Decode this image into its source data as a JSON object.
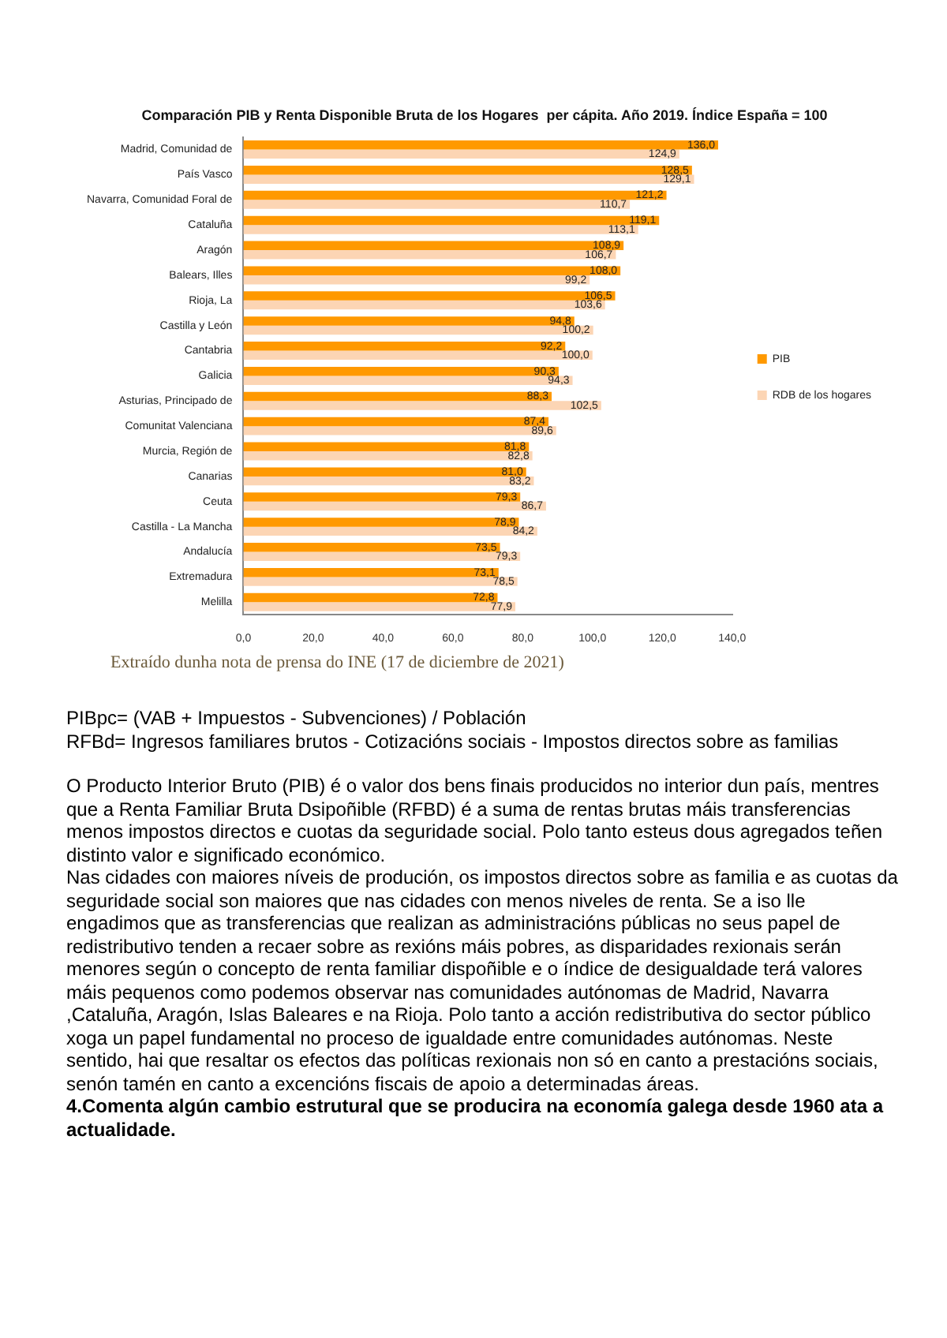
{
  "chart_data": {
    "type": "bar",
    "orientation": "horizontal",
    "title": "Comparación PIB y Renta Disponible Bruta de los Hogares  per cápita. Año 2019. Índice España = 100",
    "categories": [
      "Madrid, Comunidad de",
      "País Vasco",
      "Navarra, Comunidad Foral de",
      "Cataluña",
      "Aragón",
      "Balears, Illes",
      "Rioja, La",
      "Castilla y León",
      "Cantabria",
      "Galicia",
      "Asturias, Principado de",
      "Comunitat Valenciana",
      "Murcia, Región de",
      "Canarias",
      "Ceuta",
      "Castilla - La Mancha",
      "Andalucía",
      "Extremadura",
      "Melilla"
    ],
    "series": [
      {
        "name": "PIB",
        "color": "#ff9900",
        "values": [
          136.0,
          128.5,
          121.2,
          119.1,
          108.9,
          108.0,
          106.5,
          94.8,
          92.2,
          90.3,
          88.3,
          87.4,
          81.8,
          81.0,
          79.3,
          78.9,
          73.5,
          73.1,
          72.8
        ],
        "value_labels": [
          "136,0",
          "128,5",
          "121,2",
          "119,1",
          "108,9",
          "108,0",
          "106,5",
          "94,8",
          "92,2",
          "90,3",
          "88,3",
          "87,4",
          "81,8",
          "81,0",
          "79,3",
          "78,9",
          "73,5",
          "73,1",
          "72,8"
        ]
      },
      {
        "name": "RDB de los hogares",
        "color": "#fcd5b4",
        "values": [
          124.9,
          129.1,
          110.7,
          113.1,
          106.7,
          99.2,
          103.6,
          100.2,
          100.0,
          94.3,
          102.5,
          89.6,
          82.8,
          83.2,
          86.7,
          84.2,
          79.3,
          78.5,
          77.9
        ],
        "value_labels": [
          "124,9",
          "129,1",
          "110,7",
          "113,1",
          "106,7",
          "99,2",
          "103,6",
          "100,2",
          "100,0",
          "94,3",
          "102,5",
          "89,6",
          "82,8",
          "83,2",
          "86,7",
          "84,2",
          "79,3",
          "78,5",
          "77,9"
        ]
      }
    ],
    "xlim": [
      0,
      140
    ],
    "xticks": [
      {
        "value": 0,
        "label": "0,0"
      },
      {
        "value": 20,
        "label": "20,0"
      },
      {
        "value": 40,
        "label": "40,0"
      },
      {
        "value": 60,
        "label": "60,0"
      },
      {
        "value": 80,
        "label": "80,0"
      },
      {
        "value": 100,
        "label": "100,0"
      },
      {
        "value": 120,
        "label": "120,0"
      },
      {
        "value": 140,
        "label": "140,0"
      }
    ],
    "grid": false,
    "legend": "right",
    "annotations": [
      "Extraído dunha nota de prensa do INE (17 de diciembre de 2021)",
      "PIBpc= (VAB + Impuestos - Subvenciones) / Población",
      "RFBd= Ingresos familiares brutos - Cotizacións sociais - Impostos directos sobre as familias",
      "O Producto Interior Bruto (PIB) é o valor dos bens finais producidos no interior dun país, mentres que a Renta Familiar Bruta Dsipoñible (RFBD) é a suma de rentas brutas máis transferencias menos impostos directos e cuotas da seguridade social. Polo tanto esteus dous agregados teñen distinto valor e significado económico.",
      "Nas cidades con maiores níveis de produción, os impostos directos sobre as familia e as cuotas da seguridade social son maiores que nas cidades con menos niveles de renta. Se a iso lle engadimos que as transferencias que realizan as administracións públicas no seus papel de redistributivo tenden a recaer sobre as rexións máis pobres, as disparidades rexionais serán menores según o concepto de renta familiar dispoñible e o índice de desigualdade terá valores máis pequenos como podemos observar nas comunidades autónomas de Madrid, Navarra ,Cataluña, Aragón, Islas Baleares e na Rioja. Polo tanto a acción redistributiva do sector público xoga un papel fundamental no proceso de igualdade entre comunidades autónomas. Neste sentido, hai que resaltar os efectos das políticas rexionais non só en canto a prestacións sociais, senón tamén en canto a excencións fiscais de apoio a determinadas áreas.",
      "4.Comenta algún cambio estrutural que se producira na economía galega desde 1960 ata a actualidade."
    ]
  }
}
